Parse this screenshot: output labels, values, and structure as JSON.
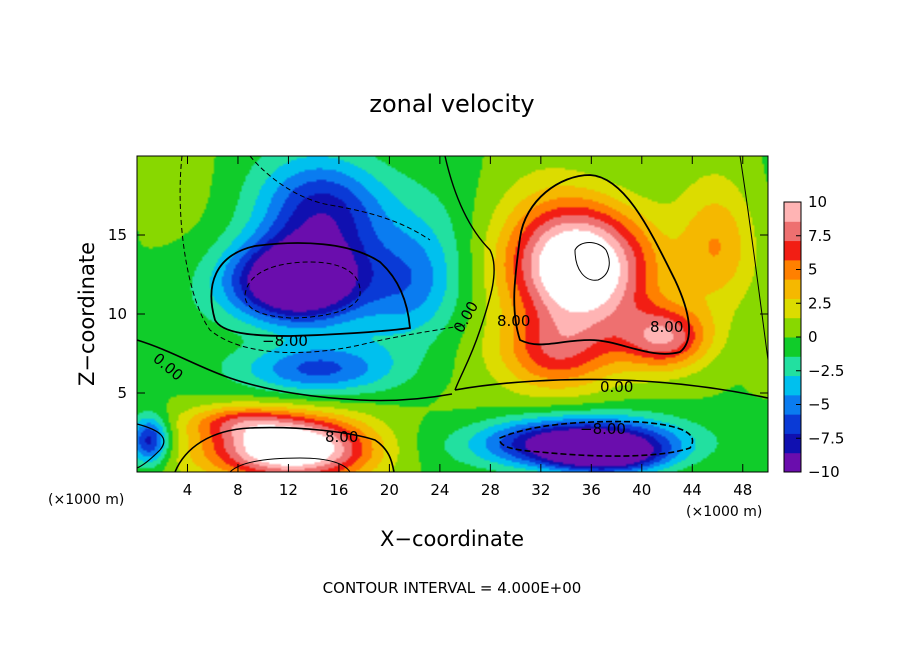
{
  "chart_data": {
    "type": "heatmap",
    "title": "zonal velocity",
    "xlabel": "X−coordinate",
    "ylabel": "Z−coordinate",
    "x_unit_left": "(×1000 m)",
    "x_unit_right": "(×1000 m)",
    "xlim": [
      0,
      50
    ],
    "ylim": [
      0,
      20
    ],
    "x_ticks": [
      4,
      8,
      12,
      16,
      20,
      24,
      28,
      32,
      36,
      40,
      44,
      48
    ],
    "y_ticks": [
      5,
      10,
      15
    ],
    "colorbar": {
      "ticks": [
        "10",
        "7.5",
        "5",
        "2.5",
        "0",
        "−2.5",
        "−5",
        "−7.5",
        "−10"
      ],
      "range": [
        -10,
        10
      ],
      "palette": [
        "#6a0dad",
        "#1010b0",
        "#0a3ad6",
        "#0a7cf0",
        "#00c0ee",
        "#22e0a0",
        "#10cc2a",
        "#88d800",
        "#dcdc00",
        "#f5b800",
        "#ff8000",
        "#f21e14",
        "#ee7070",
        "#ffb4b4"
      ]
    },
    "contour_interval": 4,
    "contour_labels": [
      "0.00",
      "−8.00",
      "8.00"
    ],
    "features": [
      {
        "x": 12.5,
        "z": 12.0,
        "value": -14,
        "sx": 5.2,
        "sz": 2.6
      },
      {
        "x": 15.0,
        "z": 16.5,
        "value": -8,
        "sx": 5.0,
        "sz": 3.5
      },
      {
        "x": 14.0,
        "z": 6.5,
        "value": -6,
        "sx": 6.0,
        "sz": 1.6
      },
      {
        "x": 22.0,
        "z": 12.0,
        "value": -5,
        "sx": 4.0,
        "sz": 4.0
      },
      {
        "x": 35.0,
        "z": 13.0,
        "value": 14,
        "sx": 5.5,
        "sz": 4.0
      },
      {
        "x": 42.0,
        "z": 8.5,
        "value": 8,
        "sx": 3.5,
        "sz": 2.0
      },
      {
        "x": 33.0,
        "z": 7.5,
        "value": 6,
        "sx": 4.5,
        "sz": 2.5
      },
      {
        "x": 46.0,
        "z": 14.0,
        "value": 4,
        "sx": 3.0,
        "sz": 4.0
      },
      {
        "x": 12.0,
        "z": 1.5,
        "value": 14,
        "sx": 6.0,
        "sz": 2.0
      },
      {
        "x": 8.0,
        "z": 3.2,
        "value": 4,
        "sx": 4.0,
        "sz": 1.0
      },
      {
        "x": 35.0,
        "z": 1.8,
        "value": -12,
        "sx": 8.0,
        "sz": 1.6
      },
      {
        "x": 37.0,
        "z": 1.0,
        "value": -6,
        "sx": 4.0,
        "sz": 0.9
      },
      {
        "x": 1.0,
        "z": 2.0,
        "value": -8,
        "sx": 1.5,
        "sz": 1.5
      },
      {
        "x": 26.0,
        "z": 2.0,
        "value": 1,
        "sx": 4.0,
        "sz": 2.5
      }
    ]
  },
  "footer": "CONTOUR INTERVAL = 4.000E+00"
}
